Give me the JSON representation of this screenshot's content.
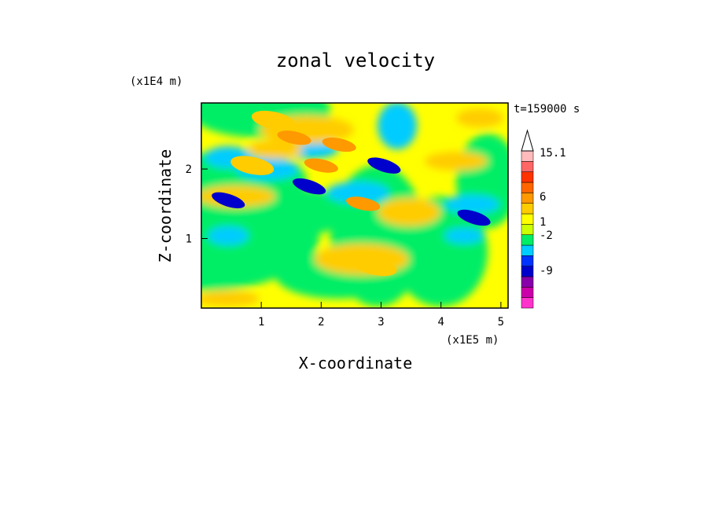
{
  "chart_data": {
    "type": "heatmap",
    "title": "zonal velocity",
    "xlabel": "X-coordinate",
    "ylabel": "Z-coordinate",
    "x_unit": "(x1E5 m)",
    "y_unit": "(x1E4 m)",
    "time_label": "t=159000 s",
    "xlim": [
      0,
      5.12
    ],
    "ylim": [
      0,
      2.95
    ],
    "x_ticks": [
      "1",
      "2",
      "3",
      "4",
      "5"
    ],
    "y_ticks": [
      "1",
      "2"
    ],
    "colorbar": {
      "labels": [
        "15.1",
        "6",
        "1",
        "-2",
        "-9"
      ],
      "colors": [
        "#ff33cc",
        "#cc00aa",
        "#8800aa",
        "#0000cc",
        "#0033ff",
        "#00ccff",
        "#00ee66",
        "#ccff00",
        "#ffff00",
        "#ffcc00",
        "#ff9900",
        "#ff6600",
        "#ff3300",
        "#ff6666",
        "#ffbbbb"
      ]
    },
    "features": [
      {
        "x": 1.8,
        "z": 1.75,
        "value": -9
      },
      {
        "x": 3.05,
        "z": 2.05,
        "value": -9
      },
      {
        "x": 0.45,
        "z": 1.55,
        "value": -9
      },
      {
        "x": 4.55,
        "z": 1.3,
        "value": -9
      },
      {
        "x": 2.0,
        "z": 2.05,
        "value": 6
      },
      {
        "x": 2.3,
        "z": 2.35,
        "value": 6
      },
      {
        "x": 1.55,
        "z": 2.45,
        "value": 6
      },
      {
        "x": 2.7,
        "z": 1.5,
        "value": 6
      },
      {
        "x": 0.85,
        "z": 2.05,
        "value": 1
      },
      {
        "x": 2.9,
        "z": 0.6,
        "value": 1
      },
      {
        "x": 1.2,
        "z": 2.7,
        "value": 1
      }
    ]
  }
}
